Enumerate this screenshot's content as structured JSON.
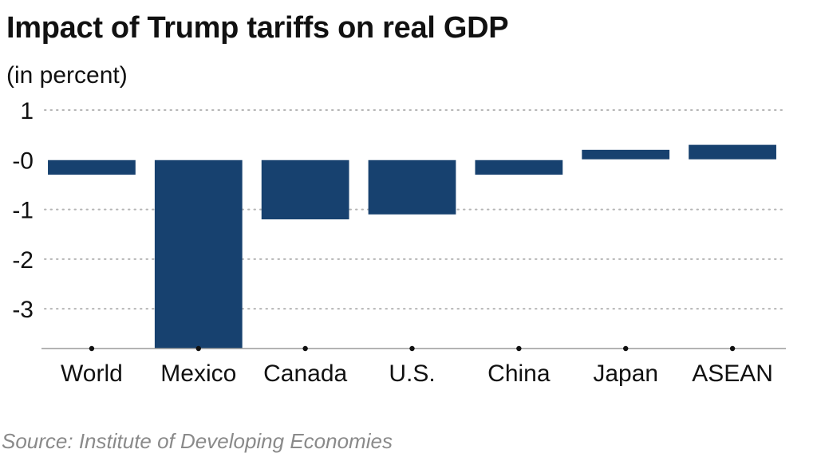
{
  "chart_data": {
    "type": "bar",
    "title": "Impact of Trump tariffs on real GDP",
    "subtitle": "(in percent)",
    "source": "Source: Institute of Developing Economies",
    "categories": [
      "World",
      "Mexico",
      "Canada",
      "U.S.",
      "China",
      "Japan",
      "ASEAN"
    ],
    "values": [
      -0.3,
      -3.8,
      -1.2,
      -1.1,
      -0.3,
      0.2,
      0.3
    ],
    "yticks": [
      1,
      0,
      -1,
      -2,
      -3
    ],
    "ytick_labels": [
      "1",
      "-0",
      "-1",
      "-2",
      "-3"
    ],
    "ylim": [
      -3.8,
      1
    ],
    "grid": true,
    "bar_color": "#17416f",
    "grid_color": "#b5b5b5"
  }
}
